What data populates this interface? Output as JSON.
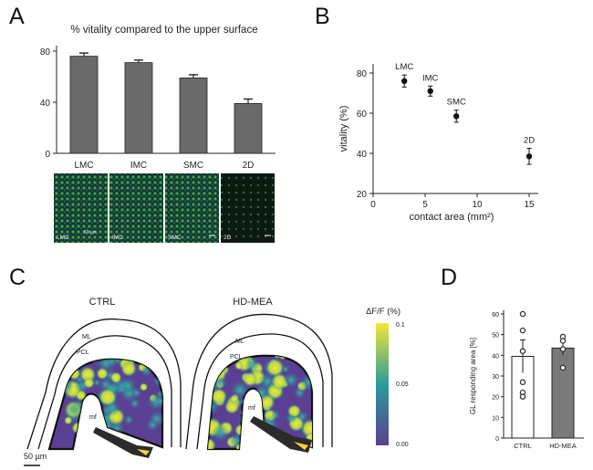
{
  "panels": {
    "a": "A",
    "b": "B",
    "c": "C",
    "d": "D"
  },
  "chart_data": [
    {
      "panel": "A",
      "type": "bar",
      "title": "% vitality compared to the upper surface",
      "categories": [
        "LMC",
        "IMC",
        "SMC",
        "2D"
      ],
      "values": [
        76,
        71,
        59,
        39
      ],
      "errors": [
        2.5,
        2,
        2.5,
        3.5
      ],
      "ylim": [
        0,
        80
      ],
      "yticks": [
        0,
        40,
        80
      ],
      "bar_color": "#6a6a6a",
      "grid": false
    },
    {
      "panel": "B",
      "type": "scatter",
      "xlabel": "contact area (mm²)",
      "ylabel": "vitality (%)",
      "xlim": [
        0,
        15
      ],
      "ylim": [
        20,
        80
      ],
      "xticks": [
        0,
        5,
        10,
        15
      ],
      "yticks": [
        20,
        40,
        60,
        80
      ],
      "points": [
        {
          "label": "LMC",
          "x": 3,
          "y": 76,
          "err": 3
        },
        {
          "label": "IMC",
          "x": 5.5,
          "y": 71,
          "err": 2.5
        },
        {
          "label": "SMC",
          "x": 8,
          "y": 58.5,
          "err": 3
        },
        {
          "label": "2D",
          "x": 15,
          "y": 38.5,
          "err": 4
        }
      ],
      "grid": false
    },
    {
      "panel": "D",
      "type": "bar",
      "ylabel": "GL responding area [%]",
      "categories": [
        "CTRL",
        "HD-MEA"
      ],
      "values": [
        39.5,
        43.5
      ],
      "errors": [
        8,
        3.5
      ],
      "points": [
        [
          60,
          52,
          42,
          27,
          22,
          20
        ],
        [
          49,
          47,
          43,
          34
        ]
      ],
      "ylim": [
        0,
        60
      ],
      "yticks": [
        0,
        10,
        20,
        30,
        40,
        50,
        60
      ],
      "bar_colors": [
        "#ffffff",
        "#7a7a7a"
      ],
      "grid": false
    }
  ],
  "micrographs": [
    {
      "label": "LMC",
      "scale": "50 µm"
    },
    {
      "label": "IMC"
    },
    {
      "label": "SMC"
    },
    {
      "label": "2D"
    }
  ],
  "panel_c": {
    "conditions": [
      "CTRL",
      "HD-MEA"
    ],
    "layer_ml": "ML",
    "layer_pcl": "PCL",
    "mf": "mf",
    "colorbar_title": "ΔF/F (%)",
    "colorbar_ticks": [
      "0.1",
      "0.05",
      "0.00"
    ],
    "colorbar_values": [
      0.1,
      0.05,
      0.0
    ],
    "scale_bar": "50 µm",
    "colors": {
      "low": "#5b3f93",
      "mid": "#2a9b9a",
      "high": "#f4e637"
    }
  }
}
